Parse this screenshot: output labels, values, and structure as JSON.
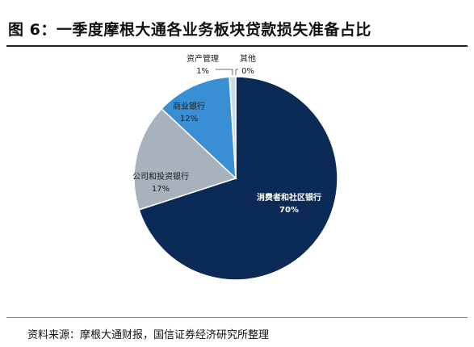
{
  "figure": {
    "title": "图 6：一季度摩根大通各业务板块贷款损失准备占比",
    "source": "资料来源：摩根大通财报，国信证券经济研究所整理"
  },
  "chart_data": {
    "type": "pie",
    "slices": [
      {
        "label": "消费者和社区银行",
        "value": 70,
        "display": "70%",
        "color": "#0b2a56",
        "text_color": "#ffffff"
      },
      {
        "label": "公司和投资银行",
        "value": 17,
        "display": "17%",
        "color": "#a8b2bd",
        "text_color": "#1b1b1b"
      },
      {
        "label": "商业银行",
        "value": 12,
        "display": "12%",
        "color": "#3a8fd4",
        "text_color": "#1b1b1b"
      },
      {
        "label": "资产管理",
        "value": 1,
        "display": "1%",
        "color": "#c9dcef",
        "text_color": "#1b1b1b"
      },
      {
        "label": "其他",
        "value": 0,
        "display": "0%",
        "color": "#ffffff",
        "text_color": "#1b1b1b"
      }
    ]
  }
}
